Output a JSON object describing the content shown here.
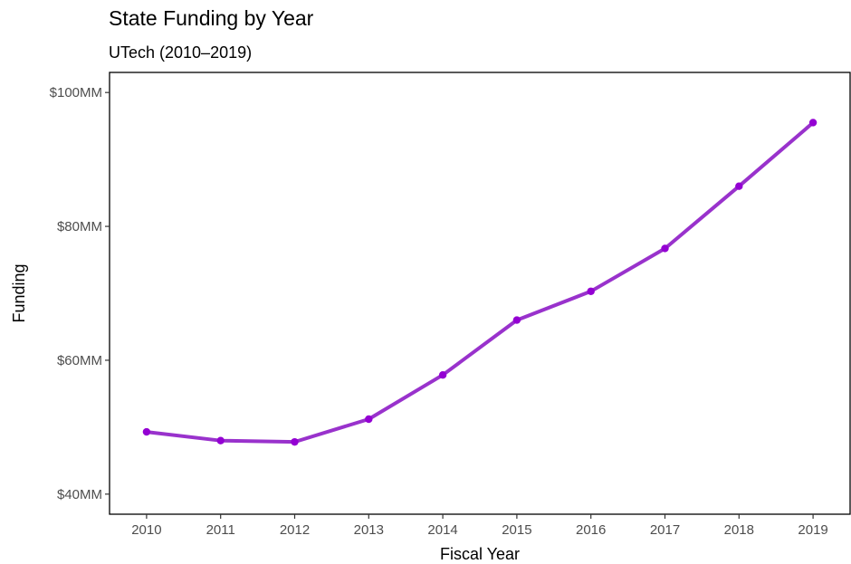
{
  "chart_data": {
    "type": "line",
    "title": "State Funding by Year",
    "subtitle": "UTech (2010–2019)",
    "xlabel": "Fiscal Year",
    "ylabel": "Funding",
    "x": [
      "2010",
      "2011",
      "2012",
      "2013",
      "2014",
      "2015",
      "2016",
      "2017",
      "2018",
      "2019"
    ],
    "series": [
      {
        "values": [
          49.3,
          48.0,
          47.8,
          51.2,
          57.8,
          66.0,
          70.3,
          76.7,
          86.0,
          95.5
        ]
      }
    ],
    "yticks": [
      40,
      60,
      80,
      100
    ],
    "ytick_labels": [
      "$40MM",
      "$60MM",
      "$80MM",
      "$100MM"
    ],
    "ylim": [
      37,
      103
    ],
    "grid": false,
    "line_color": "#9932cc",
    "point_color": "#9400d3"
  }
}
